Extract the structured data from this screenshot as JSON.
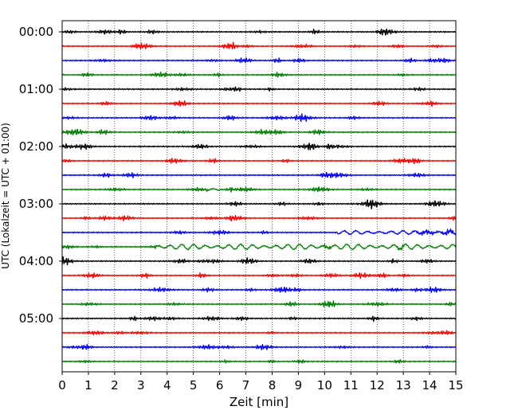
{
  "chart_data": {
    "type": "line",
    "xlabel": "Zeit  [min]",
    "ylabel": "UTC (Lokalzeit = UTC + 01:00)",
    "xlim": [
      0,
      15
    ],
    "xticks": [
      0,
      1,
      2,
      3,
      4,
      5,
      6,
      7,
      8,
      9,
      10,
      11,
      12,
      13,
      14,
      15
    ],
    "yticks": [
      "00:00",
      "01:00",
      "02:00",
      "03:00",
      "04:00",
      "05:00"
    ],
    "traces_per_hour": 4,
    "trace_count": 24,
    "trace_colors": [
      "#000000",
      "#ff0000",
      "#0000ff",
      "#008000"
    ],
    "grid": "vertical dotted lines at each minute",
    "quiet_amplitude": "small background noise",
    "events": [
      {
        "trace": 15,
        "start_min": 3.5,
        "end_min": 15,
        "description": "larger oscillations, longer period"
      },
      {
        "trace": 14,
        "start_min": 10.5,
        "end_min": 15,
        "description": "slow undulations"
      },
      {
        "trace": 11,
        "start_min": 5.5,
        "end_min": 6,
        "description": "small burst"
      }
    ]
  }
}
